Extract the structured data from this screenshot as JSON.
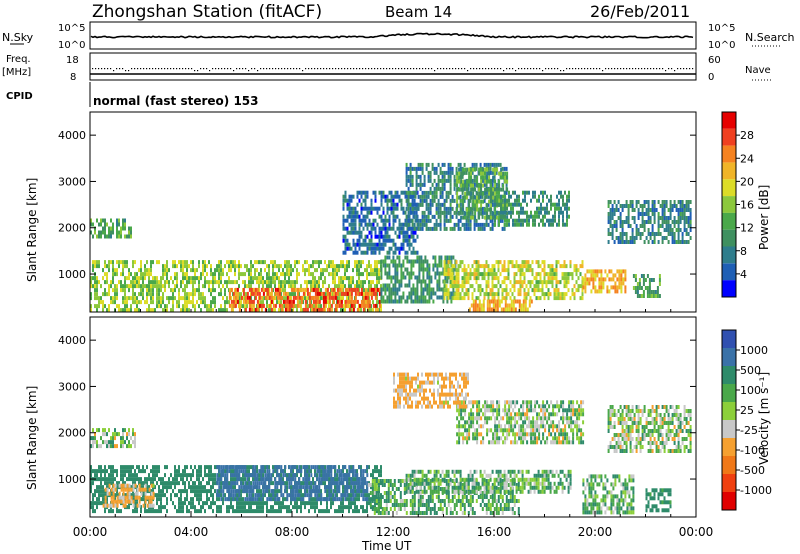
{
  "header": {
    "station": "Zhongshan Station (fitACF)",
    "beam": "Beam 14",
    "date": "26/Feb/2011"
  },
  "status_panel": {
    "left_label_1": "N.Sky",
    "left_label_2": "Freq.",
    "left_label_3": "[MHz]",
    "left_label_4": "CPID",
    "right_label_1": "N.Search",
    "right_label_2": "Nave",
    "sky_ticks": [
      "10^5",
      "10^0"
    ],
    "search_ticks": [
      "10^5",
      "10^0"
    ],
    "freq_ticks": [
      "18",
      "8"
    ],
    "nave_ticks": [
      "60",
      "0"
    ],
    "cpid_text": "normal (fast stereo) 153"
  },
  "chart_data": [
    {
      "type": "heatmap",
      "panel": "power",
      "ylabel": "Slant Range [km]",
      "xlabel": "Time UT",
      "x_range_hours": [
        0,
        24
      ],
      "y_range_km": [
        180,
        4500
      ],
      "yticks": [
        "4000",
        "3000",
        "2000",
        "1000"
      ],
      "ytick_values": [
        4000,
        3000,
        2000,
        1000
      ],
      "colorbar_label": "Power [dB]",
      "colorbar_ticks": [
        "28",
        "24",
        "20",
        "16",
        "12",
        "8",
        "4"
      ],
      "colorbar_values": [
        28,
        24,
        20,
        16,
        12,
        8,
        4
      ],
      "colorbar_colors": [
        "#0000ff",
        "#1f5fb5",
        "#2e7d8c",
        "#3f9060",
        "#4aa84a",
        "#8cc83c",
        "#dcdc28",
        "#f0b428",
        "#f58220",
        "#f04020",
        "#e60000"
      ],
      "regions": [
        {
          "t": [
            0.0,
            1.6
          ],
          "r": [
            1800,
            2200
          ],
          "value": 12
        },
        {
          "t": [
            0.0,
            11.5
          ],
          "r": [
            250,
            1300
          ],
          "value": 16
        },
        {
          "t": [
            5.5,
            11.5
          ],
          "r": [
            200,
            700
          ],
          "value": 26
        },
        {
          "t": [
            11.5,
            14.5
          ],
          "r": [
            400,
            1400
          ],
          "value": 10
        },
        {
          "t": [
            14.0,
            19.5
          ],
          "r": [
            500,
            1300
          ],
          "value": 18
        },
        {
          "t": [
            10.0,
            13.0
          ],
          "r": [
            1500,
            2800
          ],
          "value": 6
        },
        {
          "t": [
            12.5,
            16.5
          ],
          "r": [
            2000,
            3400
          ],
          "value": 8
        },
        {
          "t": [
            14.5,
            16.5
          ],
          "r": [
            2200,
            3300
          ],
          "value": 12
        },
        {
          "t": [
            16.0,
            19.0
          ],
          "r": [
            2100,
            2800
          ],
          "value": 10
        },
        {
          "t": [
            20.5,
            23.8
          ],
          "r": [
            1700,
            2600
          ],
          "value": 8
        },
        {
          "t": [
            19.5,
            21.2
          ],
          "r": [
            600,
            1100
          ],
          "value": 22
        },
        {
          "t": [
            21.5,
            22.6
          ],
          "r": [
            500,
            1000
          ],
          "value": 12
        },
        {
          "t": [
            15.0,
            17.5
          ],
          "r": [
            200,
            450
          ],
          "value": 22
        }
      ]
    },
    {
      "type": "heatmap",
      "panel": "velocity",
      "ylabel": "Slant Range [km]",
      "xlabel": "Time UT",
      "x_range_hours": [
        0,
        24
      ],
      "y_range_km": [
        180,
        4500
      ],
      "yticks": [
        "4000",
        "3000",
        "2000",
        "1000"
      ],
      "ytick_values": [
        4000,
        3000,
        2000,
        1000
      ],
      "xticks": [
        "00:00",
        "04:00",
        "08:00",
        "12:00",
        "16:00",
        "20:00",
        "00:00"
      ],
      "xtick_hours": [
        0,
        4,
        8,
        12,
        16,
        20,
        24
      ],
      "colorbar_label": "Velocity [m s⁻¹]",
      "colorbar_ticks": [
        "1000",
        "500",
        "100",
        "25",
        "-25",
        "-100",
        "-500",
        "-1000"
      ],
      "colorbar_values": [
        1000,
        500,
        100,
        25,
        -25,
        -100,
        -500,
        -1000
      ],
      "colorbar_colors": [
        "#3050b0",
        "#3a72a8",
        "#2e8b6a",
        "#4aa84a",
        "#8ccf3a",
        "#c8c8c8",
        "#f5a030",
        "#f07818",
        "#f04010",
        "#e00000"
      ],
      "regions": [
        {
          "t": [
            0.0,
            1.8
          ],
          "r": [
            1700,
            2100
          ],
          "value": 0
        },
        {
          "t": [
            0.0,
            11.5
          ],
          "r": [
            300,
            1300
          ],
          "value": 300
        },
        {
          "t": [
            5.0,
            11.0
          ],
          "r": [
            600,
            1300
          ],
          "value": 800
        },
        {
          "t": [
            0.5,
            2.5
          ],
          "r": [
            400,
            900
          ],
          "value": -150
        },
        {
          "t": [
            11.0,
            17.0
          ],
          "r": [
            300,
            1000
          ],
          "value": 80
        },
        {
          "t": [
            12.5,
            19.0
          ],
          "r": [
            700,
            1200
          ],
          "value": 60
        },
        {
          "t": [
            14.5,
            19.5
          ],
          "r": [
            1800,
            2700
          ],
          "value": 0
        },
        {
          "t": [
            12.0,
            15.0
          ],
          "r": [
            2600,
            3300
          ],
          "value": -150
        },
        {
          "t": [
            20.5,
            23.8
          ],
          "r": [
            1600,
            2600
          ],
          "value": 0
        },
        {
          "t": [
            19.5,
            21.5
          ],
          "r": [
            300,
            1100
          ],
          "value": 60
        },
        {
          "t": [
            22.0,
            23.0
          ],
          "r": [
            300,
            800
          ],
          "value": 200
        }
      ]
    }
  ]
}
